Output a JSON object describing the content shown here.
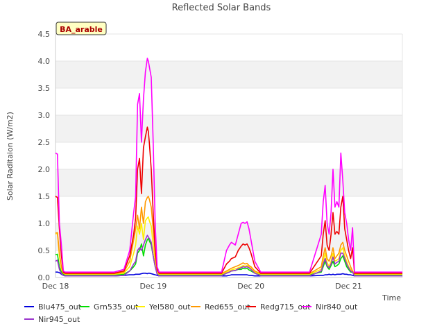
{
  "chart_data": {
    "type": "line",
    "title": "Reflected Solar Bands",
    "xlabel": "Time",
    "ylabel": "Solar Raditaion (W/m2)",
    "annotation": "BA_arable",
    "xlim": [
      0,
      3.55
    ],
    "ylim": [
      0,
      4.5
    ],
    "yticks": [
      0.0,
      0.5,
      1.0,
      1.5,
      2.0,
      2.5,
      3.0,
      3.5,
      4.0,
      4.5
    ],
    "ytick_labels": [
      "0.0",
      "0.5",
      "1.0",
      "1.5",
      "2.0",
      "2.5",
      "3.0",
      "3.5",
      "4.0",
      "4.5"
    ],
    "xticks": [
      0,
      1,
      2,
      3
    ],
    "xtick_labels": [
      "Dec 18",
      "Dec 19",
      "Dec 20",
      "Dec 21"
    ],
    "grid": "horizontal bands",
    "legend_position": "bottom",
    "x_days": [
      0.0,
      0.02,
      0.04,
      0.06,
      0.08,
      0.1,
      0.2,
      0.4,
      0.6,
      0.7,
      0.76,
      0.8,
      0.82,
      0.84,
      0.86,
      0.88,
      0.9,
      0.92,
      0.94,
      0.95,
      0.96,
      0.98,
      1.0,
      1.02,
      1.04,
      1.06,
      1.1,
      1.2,
      1.5,
      1.7,
      1.75,
      1.78,
      1.8,
      1.84,
      1.87,
      1.9,
      1.92,
      1.94,
      1.96,
      1.98,
      2.0,
      2.04,
      2.1,
      2.3,
      2.6,
      2.72,
      2.74,
      2.76,
      2.78,
      2.8,
      2.82,
      2.84,
      2.86,
      2.88,
      2.9,
      2.92,
      2.94,
      2.96,
      2.98,
      3.0,
      3.02,
      3.04,
      3.06,
      3.08,
      3.1,
      3.12,
      3.14,
      3.2,
      3.4,
      3.55
    ],
    "series": [
      {
        "name": "Blu475_out",
        "color": "#0000dd",
        "values": [
          0.1,
          0.1,
          0.09,
          0.06,
          0.04,
          0.03,
          0.03,
          0.03,
          0.03,
          0.04,
          0.05,
          0.05,
          0.06,
          0.06,
          0.06,
          0.07,
          0.08,
          0.08,
          0.07,
          0.08,
          0.08,
          0.07,
          0.06,
          0.05,
          0.04,
          0.03,
          0.03,
          0.03,
          0.03,
          0.03,
          0.03,
          0.04,
          0.05,
          0.05,
          0.05,
          0.05,
          0.05,
          0.05,
          0.05,
          0.04,
          0.04,
          0.03,
          0.03,
          0.03,
          0.03,
          0.04,
          0.04,
          0.05,
          0.05,
          0.06,
          0.05,
          0.06,
          0.05,
          0.06,
          0.06,
          0.06,
          0.07,
          0.06,
          0.06,
          0.05,
          0.05,
          0.04,
          0.03,
          0.03,
          0.03,
          0.03,
          0.03,
          0.03,
          0.03,
          0.03
        ]
      },
      {
        "name": "Grn535_out",
        "color": "#00dd00",
        "values": [
          0.42,
          0.43,
          0.2,
          0.1,
          0.06,
          0.05,
          0.05,
          0.05,
          0.05,
          0.06,
          0.12,
          0.2,
          0.25,
          0.45,
          0.5,
          0.62,
          0.4,
          0.6,
          0.7,
          0.72,
          0.68,
          0.6,
          0.4,
          0.2,
          0.1,
          0.05,
          0.05,
          0.05,
          0.05,
          0.05,
          0.08,
          0.1,
          0.12,
          0.13,
          0.15,
          0.15,
          0.17,
          0.16,
          0.17,
          0.14,
          0.12,
          0.08,
          0.05,
          0.05,
          0.05,
          0.1,
          0.2,
          0.3,
          0.2,
          0.15,
          0.22,
          0.3,
          0.2,
          0.22,
          0.25,
          0.35,
          0.4,
          0.3,
          0.2,
          0.15,
          0.1,
          0.1,
          0.05,
          0.05,
          0.05,
          0.05,
          0.05,
          0.05,
          0.05,
          0.05
        ]
      },
      {
        "name": "Yel580_out",
        "color": "#ffee00",
        "values": [
          0.8,
          0.82,
          0.4,
          0.15,
          0.08,
          0.06,
          0.06,
          0.06,
          0.06,
          0.08,
          0.2,
          0.45,
          0.6,
          0.95,
          0.8,
          1.0,
          0.7,
          1.05,
          1.1,
          1.12,
          1.05,
          0.95,
          0.6,
          0.3,
          0.1,
          0.06,
          0.06,
          0.06,
          0.06,
          0.06,
          0.1,
          0.12,
          0.14,
          0.16,
          0.18,
          0.2,
          0.22,
          0.21,
          0.22,
          0.2,
          0.17,
          0.1,
          0.06,
          0.06,
          0.06,
          0.15,
          0.3,
          0.45,
          0.28,
          0.2,
          0.3,
          0.45,
          0.3,
          0.32,
          0.35,
          0.5,
          0.55,
          0.4,
          0.3,
          0.2,
          0.15,
          0.1,
          0.06,
          0.06,
          0.06,
          0.06,
          0.06,
          0.06,
          0.06,
          0.06
        ]
      },
      {
        "name": "Red655_out",
        "color": "#ff9900",
        "values": [
          0.82,
          0.83,
          0.45,
          0.2,
          0.08,
          0.07,
          0.07,
          0.07,
          0.07,
          0.1,
          0.3,
          0.7,
          0.9,
          1.15,
          0.9,
          1.3,
          1.0,
          1.4,
          1.48,
          1.5,
          1.45,
          1.3,
          0.9,
          0.45,
          0.15,
          0.07,
          0.07,
          0.07,
          0.07,
          0.07,
          0.12,
          0.15,
          0.17,
          0.2,
          0.22,
          0.25,
          0.27,
          0.25,
          0.26,
          0.22,
          0.2,
          0.12,
          0.07,
          0.07,
          0.07,
          0.2,
          0.4,
          0.55,
          0.35,
          0.3,
          0.4,
          0.55,
          0.35,
          0.4,
          0.45,
          0.6,
          0.65,
          0.5,
          0.4,
          0.3,
          0.2,
          0.12,
          0.07,
          0.07,
          0.07,
          0.07,
          0.07,
          0.07,
          0.07,
          0.07
        ]
      },
      {
        "name": "Redg715_out",
        "color": "#ee0000",
        "values": [
          1.5,
          1.48,
          0.9,
          0.4,
          0.1,
          0.08,
          0.08,
          0.08,
          0.08,
          0.12,
          0.4,
          0.8,
          1.1,
          2.0,
          2.2,
          1.55,
          2.4,
          2.6,
          2.78,
          2.7,
          2.5,
          2.0,
          1.2,
          0.5,
          0.15,
          0.08,
          0.08,
          0.08,
          0.08,
          0.08,
          0.25,
          0.3,
          0.35,
          0.38,
          0.5,
          0.58,
          0.62,
          0.6,
          0.62,
          0.55,
          0.45,
          0.2,
          0.08,
          0.08,
          0.08,
          0.4,
          0.8,
          1.05,
          0.6,
          0.5,
          0.8,
          1.2,
          0.8,
          0.85,
          0.8,
          1.3,
          1.5,
          0.9,
          0.7,
          0.5,
          0.35,
          0.55,
          0.08,
          0.08,
          0.08,
          0.08,
          0.08,
          0.08,
          0.08,
          0.08
        ]
      },
      {
        "name": "Nir840_out",
        "color": "#ff00ff",
        "values": [
          2.3,
          2.28,
          1.0,
          0.6,
          0.12,
          0.1,
          0.1,
          0.1,
          0.1,
          0.15,
          0.5,
          1.2,
          1.5,
          3.2,
          3.4,
          2.5,
          3.3,
          3.8,
          4.05,
          4.0,
          3.9,
          3.7,
          2.5,
          1.0,
          0.2,
          0.1,
          0.1,
          0.1,
          0.1,
          0.1,
          0.5,
          0.6,
          0.65,
          0.6,
          0.8,
          1.0,
          1.02,
          1.0,
          1.03,
          0.9,
          0.7,
          0.3,
          0.1,
          0.1,
          0.1,
          0.8,
          1.4,
          1.7,
          1.0,
          0.8,
          1.2,
          2.0,
          1.3,
          1.4,
          1.3,
          2.3,
          1.8,
          1.2,
          1.0,
          0.7,
          0.5,
          0.92,
          0.1,
          0.1,
          0.1,
          0.1,
          0.1,
          0.1,
          0.1,
          0.1
        ]
      },
      {
        "name": "Nir945_out",
        "color": "#9933cc",
        "values": [
          0.3,
          0.32,
          0.15,
          0.07,
          0.04,
          0.03,
          0.03,
          0.03,
          0.03,
          0.04,
          0.12,
          0.25,
          0.3,
          0.5,
          0.55,
          0.5,
          0.6,
          0.7,
          0.78,
          0.75,
          0.72,
          0.65,
          0.4,
          0.2,
          0.06,
          0.03,
          0.03,
          0.03,
          0.03,
          0.03,
          0.08,
          0.1,
          0.12,
          0.13,
          0.16,
          0.18,
          0.2,
          0.19,
          0.2,
          0.18,
          0.15,
          0.08,
          0.03,
          0.03,
          0.03,
          0.12,
          0.25,
          0.35,
          0.22,
          0.18,
          0.25,
          0.38,
          0.25,
          0.28,
          0.3,
          0.45,
          0.45,
          0.35,
          0.25,
          0.18,
          0.12,
          0.1,
          0.03,
          0.03,
          0.03,
          0.03,
          0.03,
          0.03,
          0.03,
          0.03
        ]
      }
    ]
  }
}
